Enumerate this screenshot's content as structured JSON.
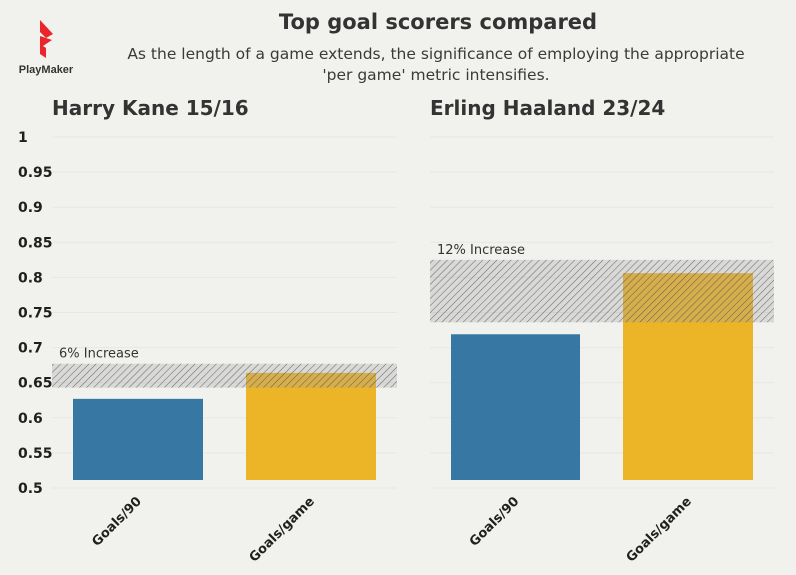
{
  "brand": {
    "name": "PlayMaker",
    "color": "#e8262b"
  },
  "header": {
    "title": "Top goal scorers compared",
    "subtitle_line1": "As the length of a game extends, the significance of employing the appropriate",
    "subtitle_line2": "'per game' metric intensifies."
  },
  "chart_data": {
    "type": "bar",
    "ylim": [
      0.5,
      1.0
    ],
    "yticks": [
      "0.5",
      "0.55",
      "0.6",
      "0.65",
      "0.7",
      "0.75",
      "0.8",
      "0.85",
      "0.9",
      "0.95",
      "1"
    ],
    "categories": [
      "Goals/90",
      "Goals/game"
    ],
    "colors": [
      "#3677a3",
      "#ecb427"
    ],
    "panels": [
      {
        "title": "Harry Kane 15/16",
        "values": [
          0.627,
          0.664
        ],
        "annotation": "6% Increase",
        "band": [
          0.643,
          0.677
        ]
      },
      {
        "title": "Erling Haaland 23/24",
        "values": [
          0.719,
          0.806
        ],
        "annotation": "12% Increase",
        "band": [
          0.736,
          0.825
        ]
      }
    ]
  }
}
